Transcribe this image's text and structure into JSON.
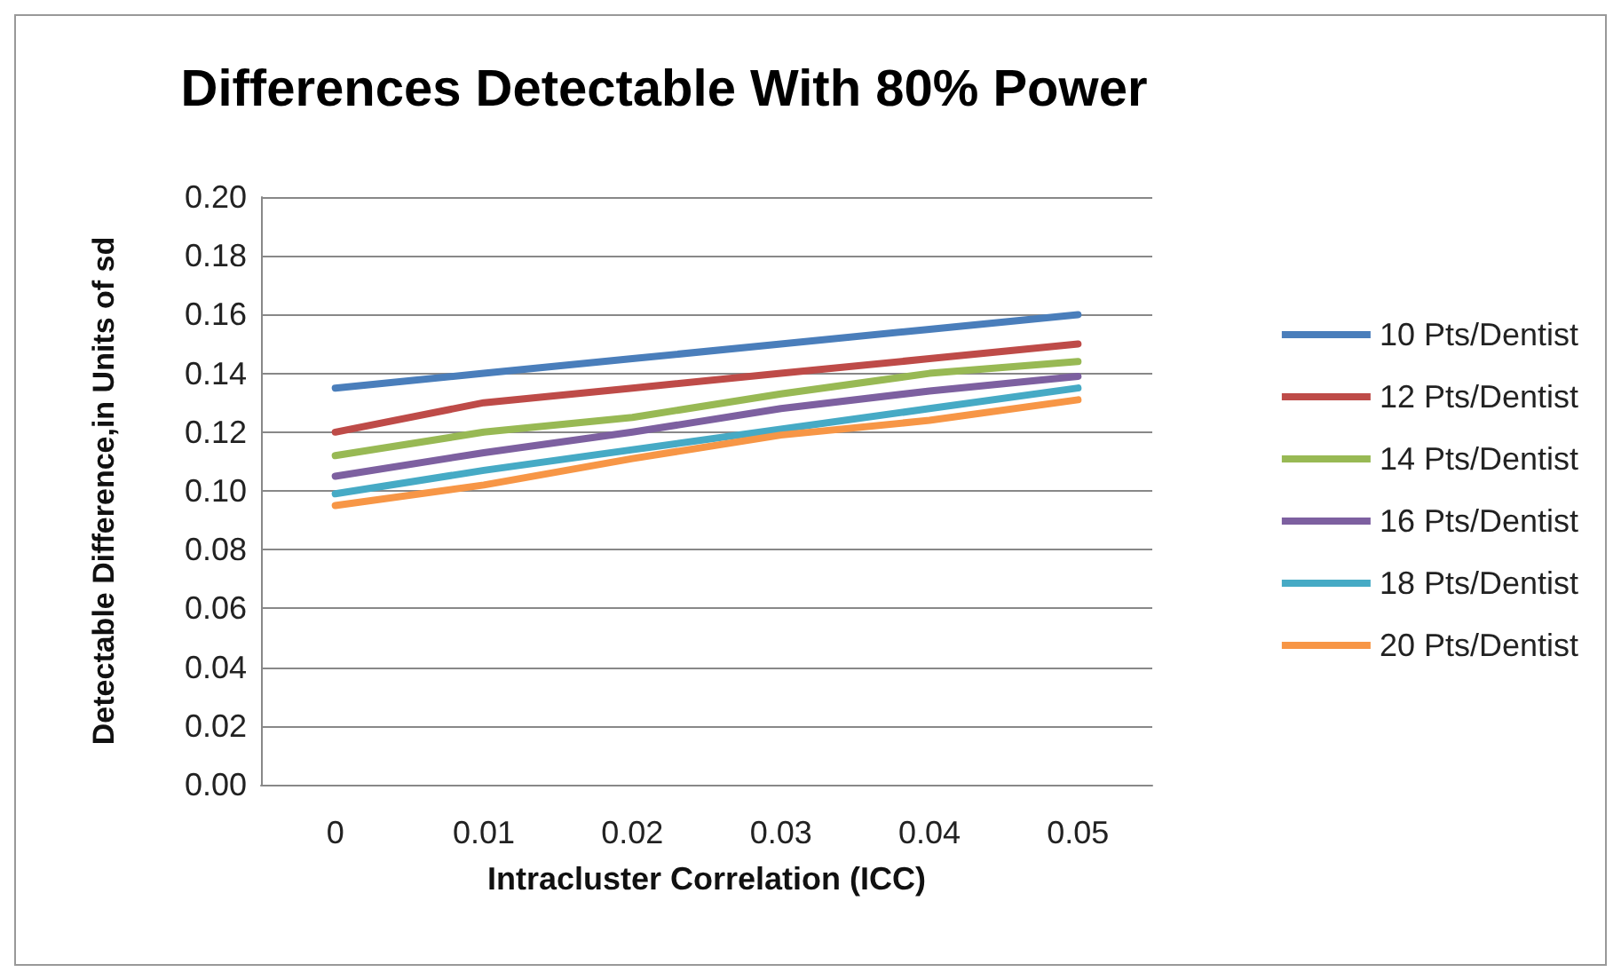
{
  "chart_data": {
    "type": "line",
    "title": "Differences Detectable With 80% Power",
    "xlabel": "Intracluster Correlation (ICC)",
    "ylabel": "Detectable Difference,in Units of sd",
    "categories": [
      "0",
      "0.01",
      "0.02",
      "0.03",
      "0.04",
      "0.05"
    ],
    "series": [
      {
        "name": "10 Pts/Dentist",
        "color": "#4a7ebb",
        "values": [
          0.135,
          0.14,
          0.145,
          0.15,
          0.155,
          0.16
        ]
      },
      {
        "name": "12 Pts/Dentist",
        "color": "#be4b48",
        "values": [
          0.12,
          0.13,
          0.135,
          0.14,
          0.145,
          0.15
        ]
      },
      {
        "name": "14 Pts/Dentist",
        "color": "#98b954",
        "values": [
          0.112,
          0.12,
          0.125,
          0.133,
          0.14,
          0.144
        ]
      },
      {
        "name": "16 Pts/Dentist",
        "color": "#7d60a0",
        "values": [
          0.105,
          0.113,
          0.12,
          0.128,
          0.134,
          0.139
        ]
      },
      {
        "name": "18 Pts/Dentist",
        "color": "#46aac5",
        "values": [
          0.099,
          0.107,
          0.114,
          0.121,
          0.128,
          0.135
        ]
      },
      {
        "name": "20 Pts/Dentist",
        "color": "#f79646",
        "values": [
          0.095,
          0.102,
          0.111,
          0.119,
          0.124,
          0.131
        ]
      }
    ],
    "ylim": [
      0,
      0.2
    ],
    "yticks": [
      {
        "value": 0,
        "label": "0.00"
      },
      {
        "value": 0.02,
        "label": "0.02"
      },
      {
        "value": 0.04,
        "label": "0.04"
      },
      {
        "value": 0.06,
        "label": "0.06"
      },
      {
        "value": 0.08,
        "label": "0.08"
      },
      {
        "value": 0.1,
        "label": "0.10"
      },
      {
        "value": 0.12,
        "label": "0.12"
      },
      {
        "value": 0.14,
        "label": "0.14"
      },
      {
        "value": 0.16,
        "label": "0.16"
      },
      {
        "value": 0.18,
        "label": "0.18"
      },
      {
        "value": 0.2,
        "label": "0.20"
      }
    ],
    "grid": "y",
    "legend": "right",
    "marker": "none",
    "line_style": "solid"
  }
}
